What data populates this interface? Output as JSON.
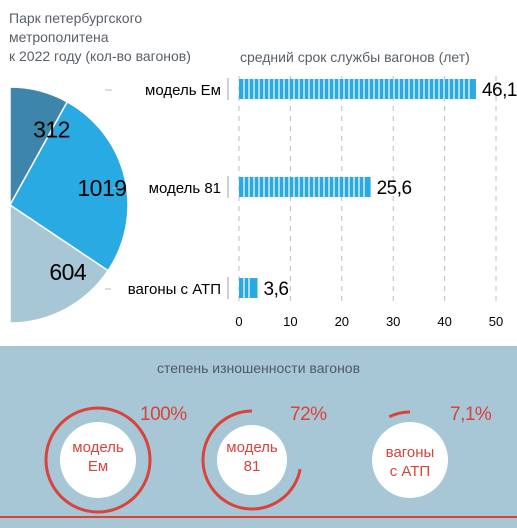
{
  "pie": {
    "title": "Парк петербургского метрополитена к 2022 году (кол-во вагонов)",
    "title_lines": [
      "Парк петербургского",
      "метрополитена",
      "к 2022 году (кол-во вагонов)"
    ]
  },
  "bars": {
    "title": "средний срок службы вагонов (лет)"
  },
  "wear": {
    "title": "степень изношенности вагонов",
    "items": [
      {
        "label_line1": "модель",
        "label_line2": "Ем",
        "value_text": "100%"
      },
      {
        "label_line1": "модель",
        "label_line2": "81",
        "value_text": "72%"
      },
      {
        "label_line1": "вагоны",
        "label_line2": "с АТП",
        "value_text": "7,1%"
      }
    ]
  },
  "colors": {
    "accent_red": "#d9433a",
    "blue_dark": "#3e85ab",
    "blue_bright": "#2aaae2",
    "blue_light": "#a7c6d6",
    "panel_bg": "#a7c6d6"
  },
  "chart_data": [
    {
      "type": "pie",
      "title": "Парк петербургского метрополитена к 2022 году (кол-во вагонов)",
      "categories": [
        "модель Ем",
        "модель 81",
        "вагоны с АТП"
      ],
      "values": [
        312,
        1019,
        604
      ],
      "value_labels": [
        "312",
        "1019",
        "604"
      ],
      "colors": [
        "#3e85ab",
        "#2aaae2",
        "#a7c6d6"
      ]
    },
    {
      "type": "bar",
      "orientation": "horizontal",
      "title": "средний срок службы вагонов (лет)",
      "categories": [
        "модель Ем",
        "модель 81",
        "вагоны с АТП"
      ],
      "values": [
        46.1,
        25.6,
        3.6
      ],
      "value_labels": [
        "46,1",
        "25,6",
        "3,6"
      ],
      "xlim": [
        0,
        50
      ],
      "xticks": [
        0,
        10,
        20,
        30,
        40,
        50
      ],
      "grid": true
    },
    {
      "type": "radial",
      "title": "степень изношенности вагонов",
      "categories": [
        "модель Ем",
        "модель 81",
        "вагоны с АТП"
      ],
      "values": [
        100,
        72,
        7.1
      ],
      "value_labels": [
        "100%",
        "72%",
        "7,1%"
      ],
      "unit": "%"
    }
  ]
}
